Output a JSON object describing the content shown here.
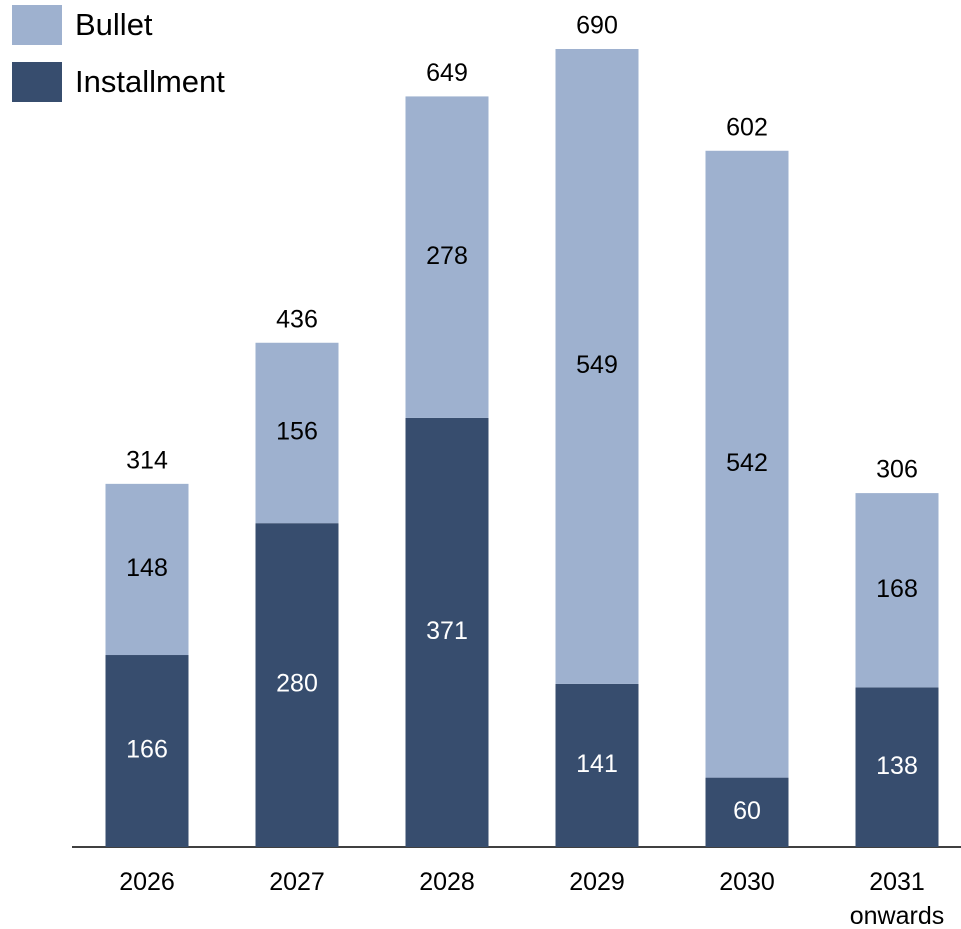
{
  "chart_data": {
    "type": "stacked_bar",
    "categories": [
      "2026",
      "2027",
      "2028",
      "2029",
      "2030",
      "2031 onwards"
    ],
    "series": [
      {
        "name": "Bullet",
        "color": "#9eb1cf",
        "values": [
          148,
          156,
          278,
          549,
          542,
          168
        ]
      },
      {
        "name": "Installment",
        "color": "#374d6e",
        "values": [
          166,
          280,
          371,
          141,
          60,
          138
        ]
      }
    ],
    "totals": [
      314,
      436,
      649,
      690,
      602,
      306
    ],
    "legend": "top-left"
  }
}
